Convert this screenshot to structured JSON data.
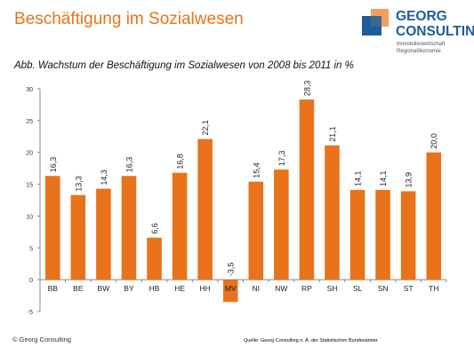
{
  "header": {
    "title": "Beschäftigung im Sozialwesen"
  },
  "logo": {
    "name_line1": "GEORG",
    "name_line2": "CONSULTING",
    "tagline_line1": "Immobilienwirtschaft",
    "tagline_line2": "Regionalökonomie",
    "color_blue": "#1f5d9a",
    "color_orange": "#f0a05a"
  },
  "chart_data": {
    "type": "bar",
    "title": "Abb. Wachstum der Beschäftigung im Sozialwesen von 2008 bis 2011 in %",
    "categories": [
      "BB",
      "BE",
      "BW",
      "BY",
      "HB",
      "HE",
      "HH",
      "MV",
      "NI",
      "NW",
      "RP",
      "SH",
      "SL",
      "SN",
      "ST",
      "TH"
    ],
    "values": [
      16.3,
      13.3,
      14.3,
      16.3,
      6.6,
      16.8,
      22.1,
      -3.5,
      15.4,
      17.3,
      28.3,
      21.1,
      14.1,
      14.1,
      13.9,
      20.0
    ],
    "value_labels": [
      "16,3",
      "13,3",
      "14,3",
      "16,3",
      "6,6",
      "16,8",
      "22,1",
      "-3,5",
      "15,4",
      "17,3",
      "28,3",
      "21,1",
      "14,1",
      "14,1",
      "13,9",
      "20,0"
    ],
    "highlight_category": "MV",
    "yticks": [
      -5,
      0,
      5,
      10,
      15,
      20,
      25,
      30
    ],
    "ytick_labels": [
      "-5",
      "0",
      "5",
      "10",
      "15",
      "20",
      "25",
      "30"
    ],
    "ylim": [
      -5,
      30
    ],
    "bar_color": "#e8731a",
    "highlight_bg_color": "#f5d48a",
    "grid": false,
    "legend": false
  },
  "footer": {
    "copyright": "© Georg Consulting",
    "source": "Quelle: Georg Consulting n. A. der Statistischen Bundesämter"
  }
}
